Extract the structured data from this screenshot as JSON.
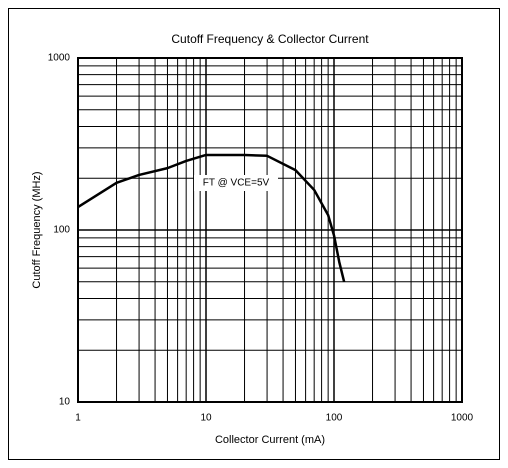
{
  "chart_data": {
    "type": "line",
    "title": "Cutoff Frequency & Collector Current",
    "x_label": "Collector Current (mA)",
    "y_label": "Cutoff Frequency (MHz)",
    "annotation": "FT @ VCE=5V",
    "xlog": true,
    "ylog": true,
    "grid": true,
    "minor_grid": true,
    "xlim": [
      1,
      1000
    ],
    "ylim": [
      10,
      1000
    ],
    "xticks": [
      1,
      10,
      100,
      1000
    ],
    "yticks": [
      10,
      100,
      1000
    ],
    "x": [
      1,
      2,
      3,
      5,
      7,
      10,
      20,
      30,
      50,
      70,
      90,
      100,
      110,
      120
    ],
    "series": [
      {
        "name": "FT @ VCE=5V",
        "color": "#000000",
        "values": [
          136,
          188,
          209,
          229,
          252,
          273,
          273,
          270,
          223,
          171,
          122,
          93,
          65,
          50
        ]
      }
    ]
  }
}
